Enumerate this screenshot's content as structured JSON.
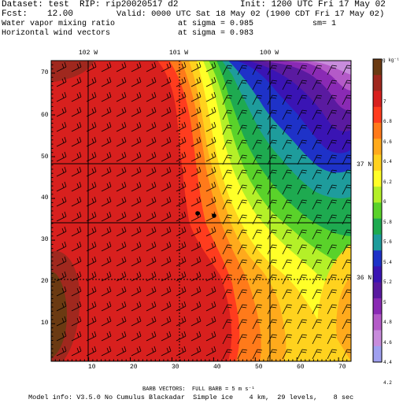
{
  "header": {
    "dataset_line": "Dataset: test  RIP: rip20020517 d2",
    "init_line": "Init: 1200 UTC Fri 17 May 02",
    "fcst_label": "Fcst:",
    "fcst_value": "12.00",
    "valid_line": "Valid: 0000 UTC Sat 18 May 02 (1900 CDT Fri 17 May 02)",
    "field1": "Water vapor mixing ratio",
    "field1_level": "at sigma = 0.985",
    "field1_extra": "sm= 1",
    "field2": "Horizontal wind vectors",
    "field2_level": "at sigma = 0.983"
  },
  "axes": {
    "x_ticks": [
      "10",
      "20",
      "30",
      "40",
      "50",
      "60",
      "70"
    ],
    "y_ticks": [
      "10",
      "20",
      "30",
      "40",
      "50",
      "60",
      "70"
    ],
    "x_range": [
      1,
      73
    ],
    "y_range": [
      1,
      73
    ]
  },
  "map_labels": {
    "lon_102": "102 W",
    "lon_101": "101 W",
    "lon_100": "100 W",
    "lat_37": "37 N",
    "lat_36": "36 N"
  },
  "colorbar": {
    "unit": "g kg⁻¹",
    "labels": [
      "7",
      "6.8",
      "6.6",
      "6.4",
      "6.2",
      "6",
      "5.8",
      "5.6",
      "5.4",
      "5.2",
      "5",
      "4.8",
      "4.6",
      "4.4",
      "4.2"
    ],
    "colors": [
      "#6b3a12",
      "#a0281e",
      "#d8201e",
      "#ff3c1e",
      "#ff7a1a",
      "#ffaa1c",
      "#ffd21e",
      "#ffff28",
      "#b4f028",
      "#5ad22a",
      "#1eaa50",
      "#1e9c9c",
      "#1e32c8",
      "#3a14b4",
      "#5a1aa0",
      "#8a2ab4",
      "#b45ac8",
      "#c88cdc",
      "#a0a0f0"
    ]
  },
  "footer": {
    "barb_line": "BARB VECTORS:  FULL BARB = 5 m s⁻¹",
    "model_line": "Model info: V3.5.0 No Cumulus Blackadar  Simple ice    4 km,  29 levels,    8 sec"
  }
}
